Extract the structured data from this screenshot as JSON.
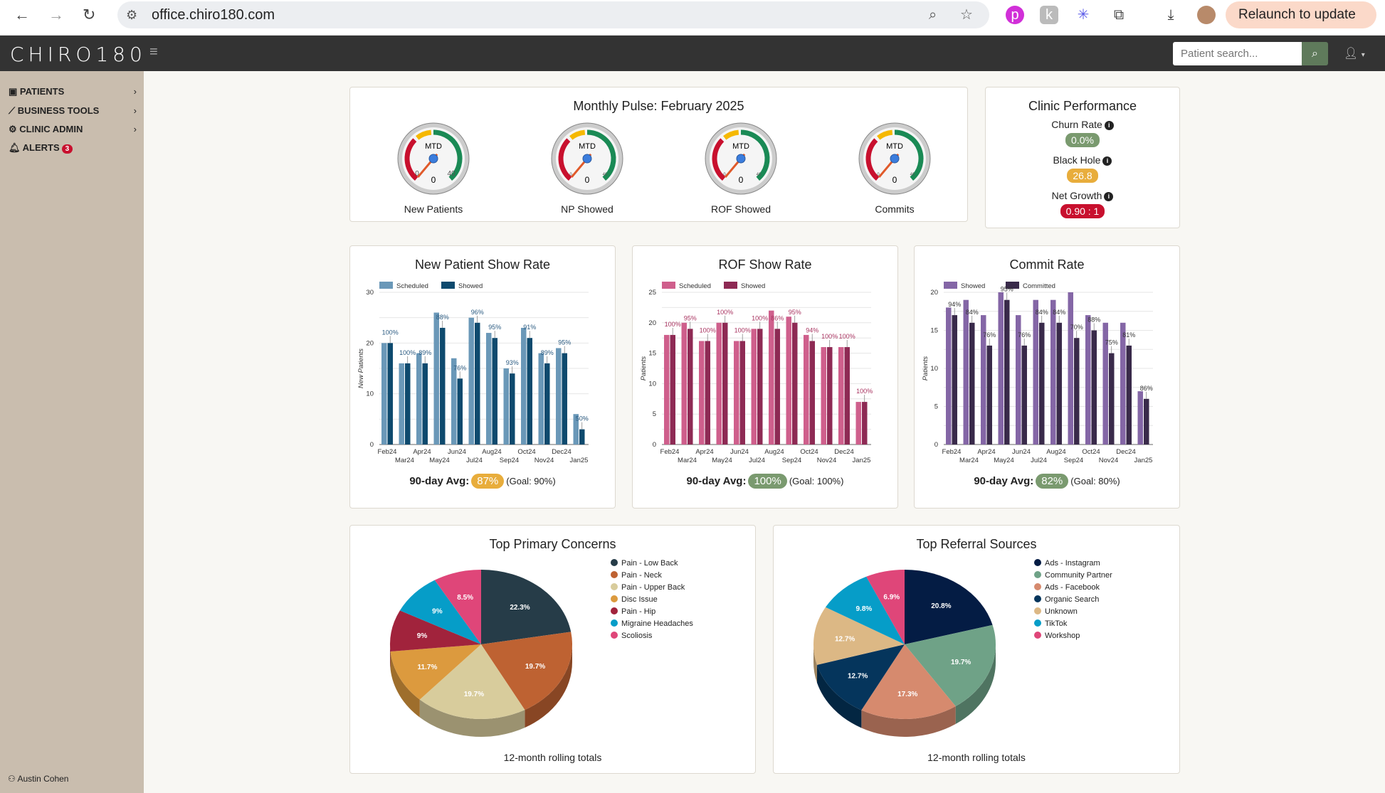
{
  "browser": {
    "url": "office.chiro180.com",
    "relaunch_label": "Relaunch to update"
  },
  "header": {
    "logo": "CHIRO180",
    "search_placeholder": "Patient search..."
  },
  "sidebar": {
    "items": [
      {
        "label": "PATIENTS",
        "icon": "clipboard-user-icon"
      },
      {
        "label": "BUSINESS TOOLS",
        "icon": "chart-line-icon"
      },
      {
        "label": "CLINIC ADMIN",
        "icon": "gear-icon"
      },
      {
        "label": "ALERTS",
        "icon": "bell-icon",
        "badge": "3"
      }
    ],
    "user": "Austin Cohen"
  },
  "pulse": {
    "title": "Monthly Pulse: February 2025",
    "gauges": [
      {
        "label": "New Patients",
        "center_label": "MTD",
        "value": 0,
        "min": "0",
        "max": "40"
      },
      {
        "label": "NP Showed",
        "center_label": "MTD",
        "value": 0,
        "min": "0",
        "max": "40"
      },
      {
        "label": "ROF Showed",
        "center_label": "MTD",
        "value": 0,
        "min": "0",
        "max": "40"
      },
      {
        "label": "Commits",
        "center_label": "MTD",
        "value": 0,
        "min": "0",
        "max": "40"
      }
    ]
  },
  "performance": {
    "title": "Clinic Performance",
    "metrics": [
      {
        "label": "Churn Rate",
        "value": "0.0%",
        "color": "#7a9a6f"
      },
      {
        "label": "Black Hole",
        "value": "26.8",
        "color": "#e8ad3c"
      },
      {
        "label": "Net Growth",
        "value": "0.90 : 1",
        "color": "#c8102e"
      }
    ]
  },
  "rate_cards": [
    {
      "avg_label": "90-day Avg:",
      "avg": "87%",
      "avg_color": "#e8ad3c",
      "goal": "(Goal: 90%)"
    },
    {
      "avg_label": "90-day Avg:",
      "avg": "100%",
      "avg_color": "#7a9a6f",
      "goal": "(Goal: 100%)"
    },
    {
      "avg_label": "90-day Avg:",
      "avg": "82%",
      "avg_color": "#7a9a6f",
      "goal": "(Goal: 80%)"
    }
  ],
  "pie_footer": "12-month rolling totals",
  "chart_data": [
    {
      "type": "bar",
      "title": "New Patient Show Rate",
      "ylabel": "New Patients",
      "ylim": [
        0,
        30
      ],
      "yticks": [
        0,
        10,
        20,
        30
      ],
      "grid": true,
      "legend": "top-left",
      "categories": [
        "Feb24",
        "Mar24",
        "Apr24",
        "May24",
        "Jun24",
        "Jul24",
        "Aug24",
        "Sep24",
        "Oct24",
        "Nov24",
        "Dec24",
        "Jan25"
      ],
      "series": [
        {
          "name": "Scheduled",
          "color": "#6a98b8",
          "values": [
            20,
            16,
            18,
            26,
            17,
            25,
            22,
            15,
            23,
            18,
            19,
            6
          ]
        },
        {
          "name": "Showed",
          "color": "#0e4a6e",
          "values": [
            20,
            16,
            16,
            23,
            13,
            24,
            21,
            14,
            21,
            16,
            18,
            3
          ]
        }
      ],
      "labels": [
        "100%",
        "100%",
        "89%",
        "88%",
        "76%",
        "96%",
        "95%",
        "93%",
        "91%",
        "89%",
        "95%",
        "50%"
      ],
      "label_color": "#2a5a80"
    },
    {
      "type": "bar",
      "title": "ROF Show Rate",
      "ylabel": "Patients",
      "ylim": [
        0,
        25
      ],
      "yticks": [
        0,
        5,
        10,
        15,
        20,
        25
      ],
      "grid": true,
      "legend": "top-left",
      "categories": [
        "Feb24",
        "Mar24",
        "Apr24",
        "May24",
        "Jun24",
        "Jul24",
        "Aug24",
        "Sep24",
        "Oct24",
        "Nov24",
        "Dec24",
        "Jan25"
      ],
      "series": [
        {
          "name": "Scheduled",
          "color": "#cf5f8c",
          "values": [
            18,
            20,
            17,
            20,
            17,
            19,
            22,
            21,
            18,
            16,
            16,
            7
          ]
        },
        {
          "name": "Showed",
          "color": "#8e2a54",
          "values": [
            18,
            19,
            17,
            20,
            17,
            19,
            19,
            20,
            17,
            16,
            16,
            7
          ]
        }
      ],
      "labels": [
        "100%",
        "95%",
        "100%",
        "100%",
        "100%",
        "100%",
        "86%",
        "95%",
        "94%",
        "100%",
        "100%",
        "100%"
      ],
      "label_color": "#a8325f"
    },
    {
      "type": "bar",
      "title": "Commit Rate",
      "ylabel": "Patients",
      "ylim": [
        0,
        20
      ],
      "yticks": [
        0,
        5,
        10,
        15,
        20
      ],
      "grid": true,
      "legend": "top-left",
      "categories": [
        "Feb24",
        "Mar24",
        "Apr24",
        "May24",
        "Jun24",
        "Jul24",
        "Aug24",
        "Sep24",
        "Oct24",
        "Nov24",
        "Dec24",
        "Jan25"
      ],
      "series": [
        {
          "name": "Showed",
          "color": "#8466a6",
          "values": [
            18,
            19,
            17,
            20,
            17,
            19,
            19,
            20,
            17,
            16,
            16,
            7
          ]
        },
        {
          "name": "Committed",
          "color": "#392a4a",
          "values": [
            17,
            16,
            13,
            19,
            13,
            16,
            16,
            14,
            15,
            12,
            13,
            6
          ]
        }
      ],
      "labels": [
        "94%",
        "84%",
        "76%",
        "95%",
        "76%",
        "84%",
        "84%",
        "70%",
        "88%",
        "75%",
        "81%",
        "86%"
      ],
      "label_color": "#333"
    },
    {
      "type": "pie",
      "title": "Top Primary Concerns",
      "legend": "right",
      "slices": [
        {
          "name": "Pain - Low Back",
          "value": 22.3,
          "label": "22.3%",
          "color": "#263c48"
        },
        {
          "name": "Pain - Neck",
          "value": 19.7,
          "label": "19.7%",
          "color": "#be6232"
        },
        {
          "name": "Pain - Upper Back",
          "value": 19.7,
          "label": "19.7%",
          "color": "#d8cc9c"
        },
        {
          "name": "Disc Issue",
          "value": 11.7,
          "label": "11.7%",
          "color": "#dc9a3e"
        },
        {
          "name": "Pain - Hip",
          "value": 9,
          "label": "9%",
          "color": "#a1233c"
        },
        {
          "name": "Migraine Headaches",
          "value": 9,
          "label": "9%",
          "color": "#069dc8"
        },
        {
          "name": "Scoliosis",
          "value": 8.5,
          "label": "8.5%",
          "color": "#df4679"
        }
      ]
    },
    {
      "type": "pie",
      "title": "Top Referral Sources",
      "legend": "right",
      "slices": [
        {
          "name": "Ads - Instagram",
          "value": 20.8,
          "label": "20.8%",
          "color": "#041c44"
        },
        {
          "name": "Community Partner",
          "value": 19.7,
          "label": "19.7%",
          "color": "#6fa287"
        },
        {
          "name": "Ads - Facebook",
          "value": 17.3,
          "label": "17.3%",
          "color": "#d68a6e"
        },
        {
          "name": "Organic Search",
          "value": 12.7,
          "label": "12.7%",
          "color": "#05355c"
        },
        {
          "name": "Unknown",
          "value": 12.7,
          "label": "12.7%",
          "color": "#dcb885"
        },
        {
          "name": "TikTok",
          "value": 9.8,
          "label": "9.8%",
          "color": "#069dc8"
        },
        {
          "name": "Workshop",
          "value": 6.9,
          "label": "6.9%",
          "color": "#df4679"
        }
      ]
    }
  ]
}
